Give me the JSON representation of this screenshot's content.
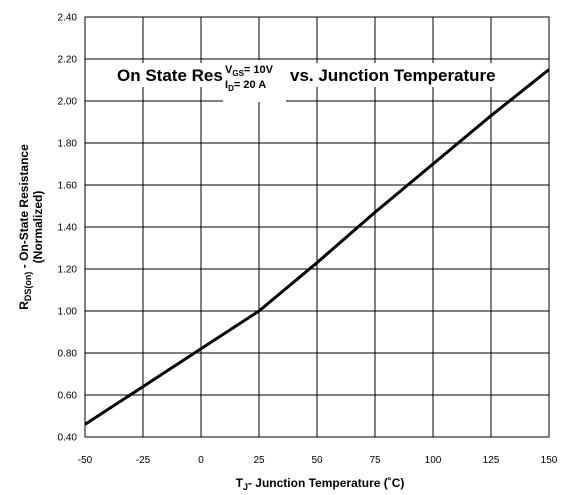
{
  "chart_data": {
    "type": "line",
    "title_left": "On State Res",
    "title_right": "vs. Junction Temperature",
    "conditions": {
      "vgs_main": "V",
      "vgs_sub": "GS",
      "vgs_value": "= 10V",
      "id_main": "I",
      "id_sub": "D",
      "id_value": "= 20 A"
    },
    "xlabel": {
      "main": "T",
      "sub": "J",
      "rest": "- Junction Temperature (˚C)"
    },
    "ylabel": {
      "main": "R",
      "sub": "DS(on)",
      "rest": " - On-State Resistance",
      "line2": "(Normalized)"
    },
    "xlim": [
      -50,
      150
    ],
    "ylim": [
      0.4,
      2.4
    ],
    "x_ticks": [
      "-50",
      "-25",
      "0",
      "25",
      "50",
      "75",
      "100",
      "125",
      "150"
    ],
    "y_ticks": [
      "0.40",
      "0.60",
      "0.80",
      "1.00",
      "1.20",
      "1.40",
      "1.60",
      "1.80",
      "2.00",
      "2.20",
      "2.40"
    ],
    "grid": true,
    "series": [
      {
        "x": [
          -50,
          -25,
          0,
          25,
          50,
          75,
          100,
          125,
          150
        ],
        "y": [
          0.46,
          0.64,
          0.82,
          1.0,
          1.23,
          1.47,
          1.7,
          1.93,
          2.15
        ]
      }
    ]
  }
}
